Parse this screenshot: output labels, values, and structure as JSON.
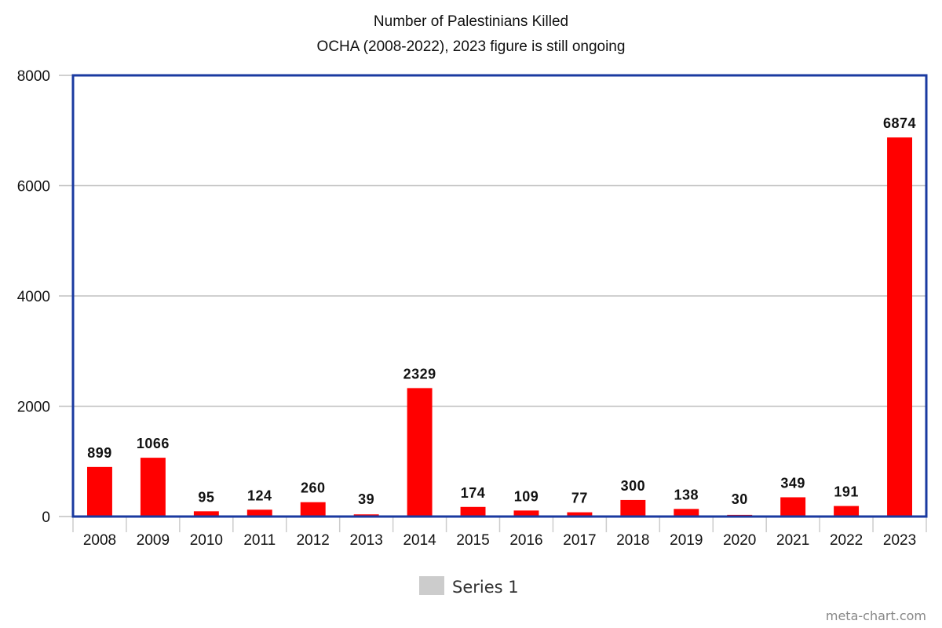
{
  "chart_data": {
    "type": "bar",
    "title": "Number of Palestinians Killed",
    "subtitle": "OCHA (2008-2022), 2023 figure is still ongoing",
    "xlabel": "",
    "ylabel": "",
    "categories": [
      "2008",
      "2009",
      "2010",
      "2011",
      "2012",
      "2013",
      "2014",
      "2015",
      "2016",
      "2017",
      "2018",
      "2019",
      "2020",
      "2021",
      "2022",
      "2023"
    ],
    "series": [
      {
        "name": "Series 1",
        "values": [
          899,
          1066,
          95,
          124,
          260,
          39,
          2329,
          174,
          109,
          77,
          300,
          138,
          30,
          349,
          191,
          6874
        ],
        "data_labels": [
          "899",
          "1066",
          "95",
          "124",
          "260",
          "39",
          "2329",
          "174",
          "109",
          "77",
          "300",
          "138",
          "30",
          "349",
          "191",
          "6874"
        ]
      }
    ],
    "ylim": [
      0,
      8000
    ],
    "yticks": [
      0,
      2000,
      4000,
      6000,
      8000
    ],
    "ytick_labels": [
      "0",
      "2000",
      "4000",
      "6000",
      "8000"
    ],
    "grid": true,
    "legend": {
      "position": "bottom-center",
      "entries": [
        "Series 1"
      ]
    },
    "colors": {
      "bar": "#ff0000",
      "frame": "#1a3aa0",
      "grid": "#c0c0c0",
      "legend_swatch": "#cccccc"
    }
  },
  "footer": {
    "credit": "meta-chart.com"
  }
}
